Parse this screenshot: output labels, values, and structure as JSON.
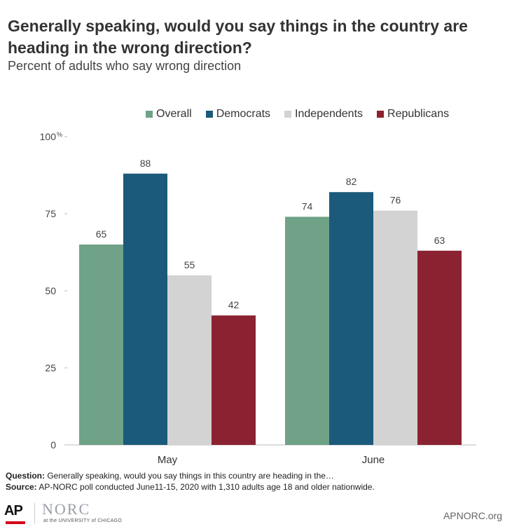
{
  "header": {
    "title": "Generally speaking, would you say things in the country are heading in the wrong direction?",
    "subtitle": "Percent of adults who say wrong direction"
  },
  "chart_data": {
    "type": "bar",
    "categories": [
      "May",
      "June"
    ],
    "series": [
      {
        "name": "Overall",
        "values": [
          65,
          74
        ],
        "color": "#6fa287"
      },
      {
        "name": "Democrats",
        "values": [
          88,
          82
        ],
        "color": "#1b5a7a"
      },
      {
        "name": "Independents",
        "values": [
          55,
          76
        ],
        "color": "#d3d3d3"
      },
      {
        "name": "Republicans",
        "values": [
          42,
          63
        ],
        "color": "#8b2231"
      }
    ],
    "yticks": [
      "0",
      "25",
      "50",
      "75",
      "100"
    ],
    "ytick_values": [
      0,
      25,
      50,
      75,
      100
    ],
    "ytick_unit": "%",
    "ylim": [
      0,
      100
    ],
    "legend_position": "top"
  },
  "footer": {
    "question_label": "Question:",
    "question_text": "Generally speaking, would you say things in this country are heading in the…",
    "source_label": "Source:",
    "source_text": "AP-NORC poll conducted June11-15, 2020 with 1,310 adults age 18 and older nationwide.",
    "ap_logo": "AP",
    "norc_logo": "NORC",
    "norc_sub": "at the UNIVERSITY of CHICAGO",
    "site": "APNORC.org"
  }
}
